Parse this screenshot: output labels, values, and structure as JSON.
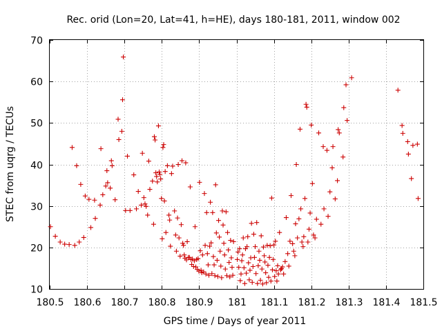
{
  "chart_data": {
    "type": "scatter",
    "title": "Rec. orid (Lon=20, Lat=41, h=HE), days 180-181, 2011, window 002",
    "xlabel": "GPS time / Days of year 2011",
    "ylabel": "STEC from uqrg / TECUs",
    "xlim": [
      180.5,
      181.5
    ],
    "ylim": [
      10,
      70
    ],
    "xticks": [
      180.5,
      180.6,
      180.7,
      180.8,
      180.9,
      181,
      181.1,
      181.2,
      181.3,
      181.4,
      181.5
    ],
    "xtick_labels": [
      "180.5",
      "180.6",
      "180.7",
      "180.8",
      "180.9",
      "181",
      "181.1",
      "181.2",
      "181.3",
      "181.4",
      "181.5"
    ],
    "yticks": [
      10,
      20,
      30,
      40,
      50,
      60,
      70
    ],
    "ytick_labels": [
      "10",
      "20",
      "30",
      "40",
      "50",
      "60",
      "70"
    ],
    "grid": true,
    "marker": "plus",
    "color": "#cc0000",
    "series": [
      {
        "points": [
          [
            180.502,
            25.0
          ],
          [
            180.515,
            22.7
          ],
          [
            180.528,
            21.3
          ],
          [
            180.54,
            20.8
          ],
          [
            180.552,
            20.7
          ],
          [
            180.56,
            44.1
          ],
          [
            180.567,
            20.5
          ],
          [
            180.572,
            39.7
          ],
          [
            180.579,
            21.3
          ],
          [
            180.583,
            35.2
          ],
          [
            180.591,
            22.4
          ],
          [
            180.595,
            32.4
          ],
          [
            180.605,
            31.6
          ],
          [
            180.61,
            24.8
          ],
          [
            180.62,
            31.4
          ],
          [
            180.622,
            27.0
          ],
          [
            180.635,
            30.2
          ],
          [
            180.637,
            43.8
          ],
          [
            180.642,
            32.7
          ],
          [
            180.65,
            34.8
          ],
          [
            180.653,
            38.5
          ],
          [
            180.655,
            35.6
          ],
          [
            180.662,
            34.3
          ],
          [
            180.665,
            40.9
          ],
          [
            180.667,
            39.7
          ],
          [
            180.675,
            31.5
          ],
          [
            180.683,
            50.9
          ],
          [
            180.685,
            46.0
          ],
          [
            180.693,
            48.0
          ],
          [
            180.695,
            55.6
          ],
          [
            180.697,
            65.9
          ],
          [
            180.703,
            28.9
          ],
          [
            180.708,
            42.0
          ],
          [
            180.715,
            28.9
          ],
          [
            180.725,
            37.5
          ],
          [
            180.732,
            29.3
          ],
          [
            180.737,
            33.5
          ],
          [
            180.745,
            30.2
          ],
          [
            180.748,
            42.7
          ],
          [
            180.752,
            32.0
          ],
          [
            180.755,
            30.5
          ],
          [
            180.758,
            29.9
          ],
          [
            180.762,
            27.8
          ],
          [
            180.765,
            40.8
          ],
          [
            180.768,
            34.0
          ],
          [
            180.775,
            36.0
          ],
          [
            180.778,
            25.6
          ],
          [
            180.78,
            46.7
          ],
          [
            180.782,
            45.9
          ],
          [
            180.784,
            38.0
          ],
          [
            180.786,
            37.1
          ],
          [
            180.788,
            35.8
          ],
          [
            180.791,
            49.3
          ],
          [
            180.793,
            38.2
          ],
          [
            180.795,
            37.6
          ],
          [
            180.797,
            36.5
          ],
          [
            180.799,
            31.8
          ],
          [
            180.801,
            22.1
          ],
          [
            180.803,
            44.1
          ],
          [
            180.805,
            44.8
          ],
          [
            180.807,
            31.2
          ],
          [
            180.809,
            38.3
          ],
          [
            180.811,
            23.6
          ],
          [
            180.815,
            39.7
          ],
          [
            180.819,
            27.8
          ],
          [
            180.821,
            26.6
          ],
          [
            180.823,
            20.3
          ],
          [
            180.826,
            37.8
          ],
          [
            180.829,
            39.6
          ],
          [
            180.834,
            28.8
          ],
          [
            180.837,
            23.0
          ],
          [
            180.839,
            19.1
          ],
          [
            180.842,
            27.1
          ],
          [
            180.844,
            40.0
          ],
          [
            180.846,
            22.3
          ],
          [
            180.849,
            17.9
          ],
          [
            180.852,
            25.5
          ],
          [
            180.854,
            40.9
          ],
          [
            180.856,
            21.0
          ],
          [
            180.858,
            20.5
          ],
          [
            180.86,
            18.2
          ],
          [
            180.862,
            17.4
          ],
          [
            180.864,
            40.4
          ],
          [
            180.866,
            17.0
          ],
          [
            180.868,
            21.4
          ],
          [
            180.871,
            17.6
          ],
          [
            180.874,
            17.6
          ],
          [
            180.876,
            34.6
          ],
          [
            180.878,
            17.1
          ],
          [
            180.88,
            15.9
          ],
          [
            180.882,
            17.2
          ],
          [
            180.885,
            15.4
          ],
          [
            180.887,
            16.8
          ],
          [
            180.889,
            25.0
          ],
          [
            180.891,
            15.3
          ],
          [
            180.893,
            17.1
          ],
          [
            180.895,
            14.7
          ],
          [
            180.897,
            17.3
          ],
          [
            180.899,
            14.3
          ],
          [
            180.901,
            35.7
          ],
          [
            180.903,
            19.2
          ],
          [
            180.905,
            14.5
          ],
          [
            180.907,
            13.9
          ],
          [
            180.909,
            18.2
          ],
          [
            180.912,
            14.1
          ],
          [
            180.914,
            33.0
          ],
          [
            180.916,
            20.5
          ],
          [
            180.918,
            13.6
          ],
          [
            180.92,
            28.4
          ],
          [
            180.922,
            18.5
          ],
          [
            180.924,
            15.8
          ],
          [
            180.926,
            13.3
          ],
          [
            180.928,
            20.3
          ],
          [
            180.93,
            30.9
          ],
          [
            180.932,
            21.1
          ],
          [
            180.934,
            13.7
          ],
          [
            180.936,
            28.4
          ],
          [
            180.938,
            17.8
          ],
          [
            180.94,
            15.8
          ],
          [
            180.942,
            13.2
          ],
          [
            180.944,
            35.1
          ],
          [
            180.946,
            23.5
          ],
          [
            180.948,
            16.9
          ],
          [
            180.95,
            13.0
          ],
          [
            180.952,
            26.5
          ],
          [
            180.954,
            22.5
          ],
          [
            180.956,
            19.1
          ],
          [
            180.958,
            15.5
          ],
          [
            180.96,
            12.7
          ],
          [
            180.962,
            28.8
          ],
          [
            180.964,
            25.4
          ],
          [
            180.966,
            21.0
          ],
          [
            180.968,
            18.2
          ],
          [
            180.97,
            14.8
          ],
          [
            180.972,
            28.6
          ],
          [
            180.974,
            13.2
          ],
          [
            180.976,
            23.6
          ],
          [
            180.978,
            19.4
          ],
          [
            180.98,
            16.4
          ],
          [
            180.982,
            12.9
          ],
          [
            180.984,
            21.7
          ],
          [
            180.986,
            17.5
          ],
          [
            180.988,
            15.2
          ],
          [
            180.99,
            13.3
          ],
          [
            180.992,
            21.4
          ]
        ]
      },
      {
        "points": [
          [
            181.002,
            17.1
          ],
          [
            181.004,
            18.9
          ],
          [
            181.006,
            15.2
          ],
          [
            181.008,
            19.7
          ],
          [
            181.01,
            12.0
          ],
          [
            181.012,
            13.6
          ],
          [
            181.014,
            16.8
          ],
          [
            181.016,
            18.2
          ],
          [
            181.018,
            22.3
          ],
          [
            181.02,
            15.1
          ],
          [
            181.022,
            11.3
          ],
          [
            181.024,
            19.7
          ],
          [
            181.026,
            13.8
          ],
          [
            181.028,
            20.2
          ],
          [
            181.03,
            22.6
          ],
          [
            181.032,
            16.3
          ],
          [
            181.034,
            12.2
          ],
          [
            181.036,
            14.5
          ],
          [
            181.038,
            17.5
          ],
          [
            181.04,
            25.8
          ],
          [
            181.042,
            11.6
          ],
          [
            181.044,
            15.4
          ],
          [
            181.046,
            23.2
          ],
          [
            181.048,
            17.6
          ],
          [
            181.05,
            20.2
          ],
          [
            181.052,
            13.7
          ],
          [
            181.054,
            26.0
          ],
          [
            181.056,
            11.3
          ],
          [
            181.058,
            15.6
          ],
          [
            181.06,
            19.1
          ],
          [
            181.062,
            16.9
          ],
          [
            181.064,
            12.1
          ],
          [
            181.066,
            22.8
          ],
          [
            181.068,
            14.8
          ],
          [
            181.07,
            11.2
          ],
          [
            181.072,
            20.1
          ],
          [
            181.074,
            18.0
          ],
          [
            181.076,
            16.5
          ],
          [
            181.078,
            13.9
          ],
          [
            181.08,
            11.5
          ],
          [
            181.082,
            20.5
          ],
          [
            181.084,
            15.7
          ],
          [
            181.086,
            12.8
          ],
          [
            181.088,
            17.6
          ],
          [
            181.09,
            20.4
          ],
          [
            181.092,
            11.9
          ],
          [
            181.094,
            31.9
          ],
          [
            181.096,
            14.6
          ],
          [
            181.098,
            17.1
          ],
          [
            181.1,
            20.6
          ],
          [
            181.102,
            13.0
          ],
          [
            181.104,
            21.5
          ],
          [
            181.106,
            14.4
          ],
          [
            181.108,
            11.9
          ],
          [
            181.11,
            15.6
          ],
          [
            181.112,
            13.6
          ],
          [
            181.115,
            23.6
          ],
          [
            181.118,
            14.6
          ],
          [
            181.12,
            14.9
          ],
          [
            181.123,
            15.3
          ],
          [
            181.126,
            13.6
          ],
          [
            181.13,
            16.6
          ],
          [
            181.133,
            27.2
          ],
          [
            181.137,
            18.5
          ],
          [
            181.14,
            15.5
          ],
          [
            181.143,
            21.5
          ],
          [
            181.146,
            32.5
          ],
          [
            181.15,
            20.9
          ],
          [
            181.153,
            19.1
          ],
          [
            181.156,
            18.0
          ],
          [
            181.158,
            25.7
          ],
          [
            181.16,
            40.0
          ],
          [
            181.163,
            22.3
          ],
          [
            181.167,
            26.9
          ],
          [
            181.17,
            48.5
          ],
          [
            181.172,
            29.3
          ],
          [
            181.175,
            21.3
          ],
          [
            181.178,
            20.2
          ],
          [
            181.18,
            22.6
          ],
          [
            181.183,
            31.8
          ],
          [
            181.186,
            54.5
          ],
          [
            181.188,
            53.8
          ],
          [
            181.191,
            21.3
          ],
          [
            181.194,
            24.4
          ],
          [
            181.197,
            28.3
          ],
          [
            181.2,
            49.5
          ],
          [
            181.203,
            35.4
          ],
          [
            181.206,
            23.0
          ],
          [
            181.21,
            22.3
          ],
          [
            181.214,
            26.8
          ],
          [
            181.22,
            47.6
          ],
          [
            181.226,
            25.6
          ],
          [
            181.232,
            44.3
          ],
          [
            181.234,
            29.3
          ],
          [
            181.242,
            43.4
          ],
          [
            181.245,
            27.5
          ],
          [
            181.25,
            33.4
          ],
          [
            181.256,
            39.2
          ],
          [
            181.258,
            44.3
          ],
          [
            181.264,
            31.7
          ],
          [
            181.27,
            36.1
          ],
          [
            181.272,
            48.4
          ],
          [
            181.275,
            47.6
          ],
          [
            181.285,
            41.8
          ],
          [
            181.287,
            53.7
          ],
          [
            181.293,
            59.2
          ],
          [
            181.296,
            50.6
          ],
          [
            181.308,
            60.9
          ]
        ]
      },
      {
        "points": [
          [
            181.432,
            57.9
          ],
          [
            181.443,
            49.4
          ],
          [
            181.445,
            47.5
          ],
          [
            181.458,
            45.5
          ],
          [
            181.46,
            42.5
          ],
          [
            181.468,
            36.6
          ],
          [
            181.472,
            44.6
          ],
          [
            181.484,
            44.9
          ],
          [
            181.486,
            31.8
          ]
        ]
      }
    ]
  }
}
